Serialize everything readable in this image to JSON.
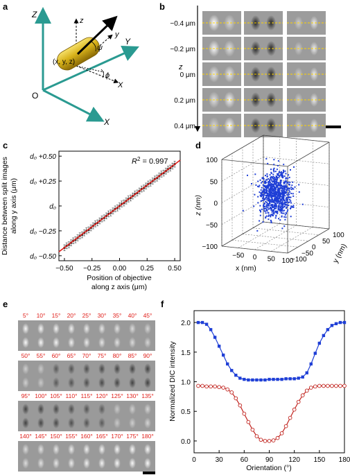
{
  "panels": {
    "a": {
      "letter": "a",
      "axes": {
        "Z": "Z",
        "Y": "Y",
        "X": "X",
        "origin": "O"
      },
      "local_axes": {
        "z": "z",
        "y": "y",
        "x": "X"
      },
      "point": "(x, y, z)",
      "angles": {
        "psi": "ψ",
        "phi": "ϕ"
      }
    },
    "b": {
      "letter": "b",
      "axis_label": "z",
      "rows": [
        "−0.4 μm",
        "−0.2 μm",
        "0 μm",
        "0.2 μm",
        "0.4 μm"
      ]
    },
    "c": {
      "letter": "c",
      "r2_prefix": "R",
      "r2_sup": "2",
      "r2_value": " = 0.997",
      "ylabel_line1": "Distance between split images",
      "ylabel_line2": "along y axis (μm)",
      "xlabel_line1": "Position of objective",
      "xlabel_line2": "along z axis (μm)",
      "ytick_labels": [
        "d₀ +0.50",
        "d₀ +0.25",
        "d₀",
        "d₀ −0.25",
        "d₀ −0.50"
      ],
      "xtick_labels": [
        "−0.50",
        "−0.25",
        "0.00",
        "0.25",
        "0.50"
      ],
      "colors": {
        "fit": "#e0201b",
        "points": "#222222"
      }
    },
    "d": {
      "letter": "d",
      "z_label": "z (nm)",
      "x_label": "x (nm)",
      "y_label": "y (nm)",
      "z_ticks": [
        "100",
        "50",
        "0",
        "−50",
        "−100"
      ],
      "x_ticks": [
        "−50",
        "0",
        "50",
        "100"
      ],
      "y_ticks": [
        "−100",
        "−50",
        "0",
        "50",
        "100"
      ],
      "colors": {
        "points": "#1f3fd6"
      }
    },
    "e": {
      "letter": "e",
      "angle_rows": [
        [
          "5°",
          "10°",
          "15°",
          "20°",
          "25°",
          "30°",
          "35°",
          "40°",
          "45°"
        ],
        [
          "50°",
          "55°",
          "60°",
          "65°",
          "70°",
          "75°",
          "80°",
          "85°",
          "90°"
        ],
        [
          "95°",
          "100°",
          "105°",
          "110°",
          "115°",
          "120°",
          "125°",
          "130°",
          "135°"
        ],
        [
          "140°",
          "145°",
          "150°",
          "155°",
          "160°",
          "165°",
          "170°",
          "175°",
          "180°"
        ]
      ],
      "colors": {
        "angle_text": "#e0201b"
      }
    },
    "f": {
      "letter": "f",
      "ylabel": "Normalized DIC intensity",
      "xlabel": "Orientation (°)",
      "colors": {
        "series_blue": "#1f3fd6",
        "series_red": "#c0201b"
      }
    }
  },
  "chart_data": [
    {
      "type": "scatter",
      "panel": "c",
      "xlim": [
        -0.55,
        0.55
      ],
      "ylim": [
        -0.55,
        0.55
      ],
      "x": [
        -0.5,
        -0.48,
        -0.46,
        -0.44,
        -0.42,
        -0.4,
        -0.38,
        -0.36,
        -0.34,
        -0.32,
        -0.3,
        -0.28,
        -0.26,
        -0.24,
        -0.22,
        -0.2,
        -0.18,
        -0.16,
        -0.14,
        -0.12,
        -0.1,
        -0.08,
        -0.06,
        -0.04,
        -0.02,
        0.0,
        0.02,
        0.04,
        0.06,
        0.08,
        0.1,
        0.12,
        0.14,
        0.16,
        0.18,
        0.2,
        0.22,
        0.24,
        0.26,
        0.28,
        0.3,
        0.32,
        0.34,
        0.36,
        0.38,
        0.4,
        0.42,
        0.44,
        0.46,
        0.48,
        0.5
      ],
      "y": [
        -0.42,
        -0.4,
        -0.39,
        -0.37,
        -0.35,
        -0.34,
        -0.32,
        -0.3,
        -0.29,
        -0.27,
        -0.25,
        -0.24,
        -0.22,
        -0.2,
        -0.18,
        -0.17,
        -0.15,
        -0.13,
        -0.12,
        -0.1,
        -0.08,
        -0.07,
        -0.05,
        -0.03,
        -0.02,
        0.0,
        0.02,
        0.03,
        0.05,
        0.07,
        0.08,
        0.1,
        0.12,
        0.13,
        0.15,
        0.17,
        0.18,
        0.2,
        0.22,
        0.23,
        0.25,
        0.27,
        0.28,
        0.3,
        0.32,
        0.33,
        0.35,
        0.37,
        0.38,
        0.4,
        0.42
      ],
      "error": 0.03,
      "fit": {
        "x": [
          -0.55,
          0.55
        ],
        "y": [
          -0.46,
          0.46
        ]
      },
      "r2": 0.997
    },
    {
      "type": "scatter",
      "panel": "d",
      "xlim": [
        -100,
        100
      ],
      "ylim": [
        -100,
        100
      ],
      "zlim": [
        -100,
        100
      ],
      "center": [
        0,
        0,
        0
      ],
      "spread_nm": {
        "x": 20,
        "y": 20,
        "z": 25
      },
      "n_points": 900
    },
    {
      "type": "line",
      "panel": "f",
      "xlim": [
        0,
        180
      ],
      "ylim": [
        -0.2,
        2.2
      ],
      "xticks": [
        0,
        30,
        60,
        90,
        120,
        150,
        180
      ],
      "yticks": [
        0.0,
        0.5,
        1.0,
        1.5,
        2.0
      ],
      "series": [
        {
          "x": [
            5,
            10,
            15,
            20,
            25,
            30,
            35,
            40,
            45,
            50,
            55,
            60,
            65,
            70,
            75,
            80,
            85,
            90,
            95,
            100,
            105,
            110,
            115,
            120,
            125,
            130,
            135,
            140,
            145,
            150,
            155,
            160,
            165,
            170,
            175,
            180
          ],
          "values": [
            2.0,
            2.0,
            1.97,
            1.88,
            1.75,
            1.6,
            1.45,
            1.3,
            1.19,
            1.11,
            1.06,
            1.04,
            1.03,
            1.03,
            1.03,
            1.03,
            1.03,
            1.04,
            1.04,
            1.04,
            1.04,
            1.05,
            1.05,
            1.05,
            1.06,
            1.08,
            1.15,
            1.3,
            1.48,
            1.65,
            1.78,
            1.88,
            1.95,
            1.98,
            2.0,
            2.0
          ],
          "marker": "square"
        },
        {
          "x": [
            5,
            10,
            15,
            20,
            25,
            30,
            35,
            40,
            45,
            50,
            55,
            60,
            65,
            70,
            75,
            80,
            85,
            90,
            95,
            100,
            105,
            110,
            115,
            120,
            125,
            130,
            135,
            140,
            145,
            150,
            155,
            160,
            165,
            170,
            175,
            180
          ],
          "values": [
            0.93,
            0.93,
            0.92,
            0.92,
            0.92,
            0.91,
            0.9,
            0.87,
            0.82,
            0.72,
            0.6,
            0.46,
            0.32,
            0.19,
            0.08,
            0.02,
            0.0,
            0.0,
            0.01,
            0.05,
            0.13,
            0.25,
            0.39,
            0.53,
            0.66,
            0.77,
            0.85,
            0.9,
            0.92,
            0.93,
            0.93,
            0.93,
            0.93,
            0.93,
            0.93,
            0.93
          ],
          "marker": "open-circle"
        }
      ]
    }
  ]
}
